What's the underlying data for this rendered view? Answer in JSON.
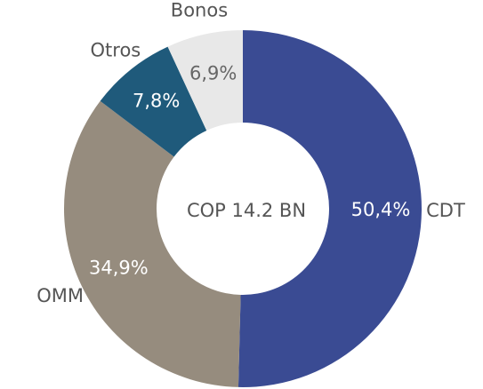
{
  "chart_data": {
    "type": "donut",
    "center_label": "COP 14.2 BN",
    "categories": [
      "CDT",
      "OMM",
      "Otros",
      "Bonos"
    ],
    "values": [
      50.4,
      34.9,
      7.8,
      6.9
    ],
    "value_labels": [
      "50,4%",
      "34,9%",
      "7,8%",
      "6,9%"
    ],
    "colors": [
      "#3a4b93",
      "#968c7e",
      "#1f5a7b",
      "#e8e8e8"
    ],
    "label_colors": [
      "#ffffff",
      "#ffffff",
      "#ffffff",
      "#666666"
    ]
  }
}
